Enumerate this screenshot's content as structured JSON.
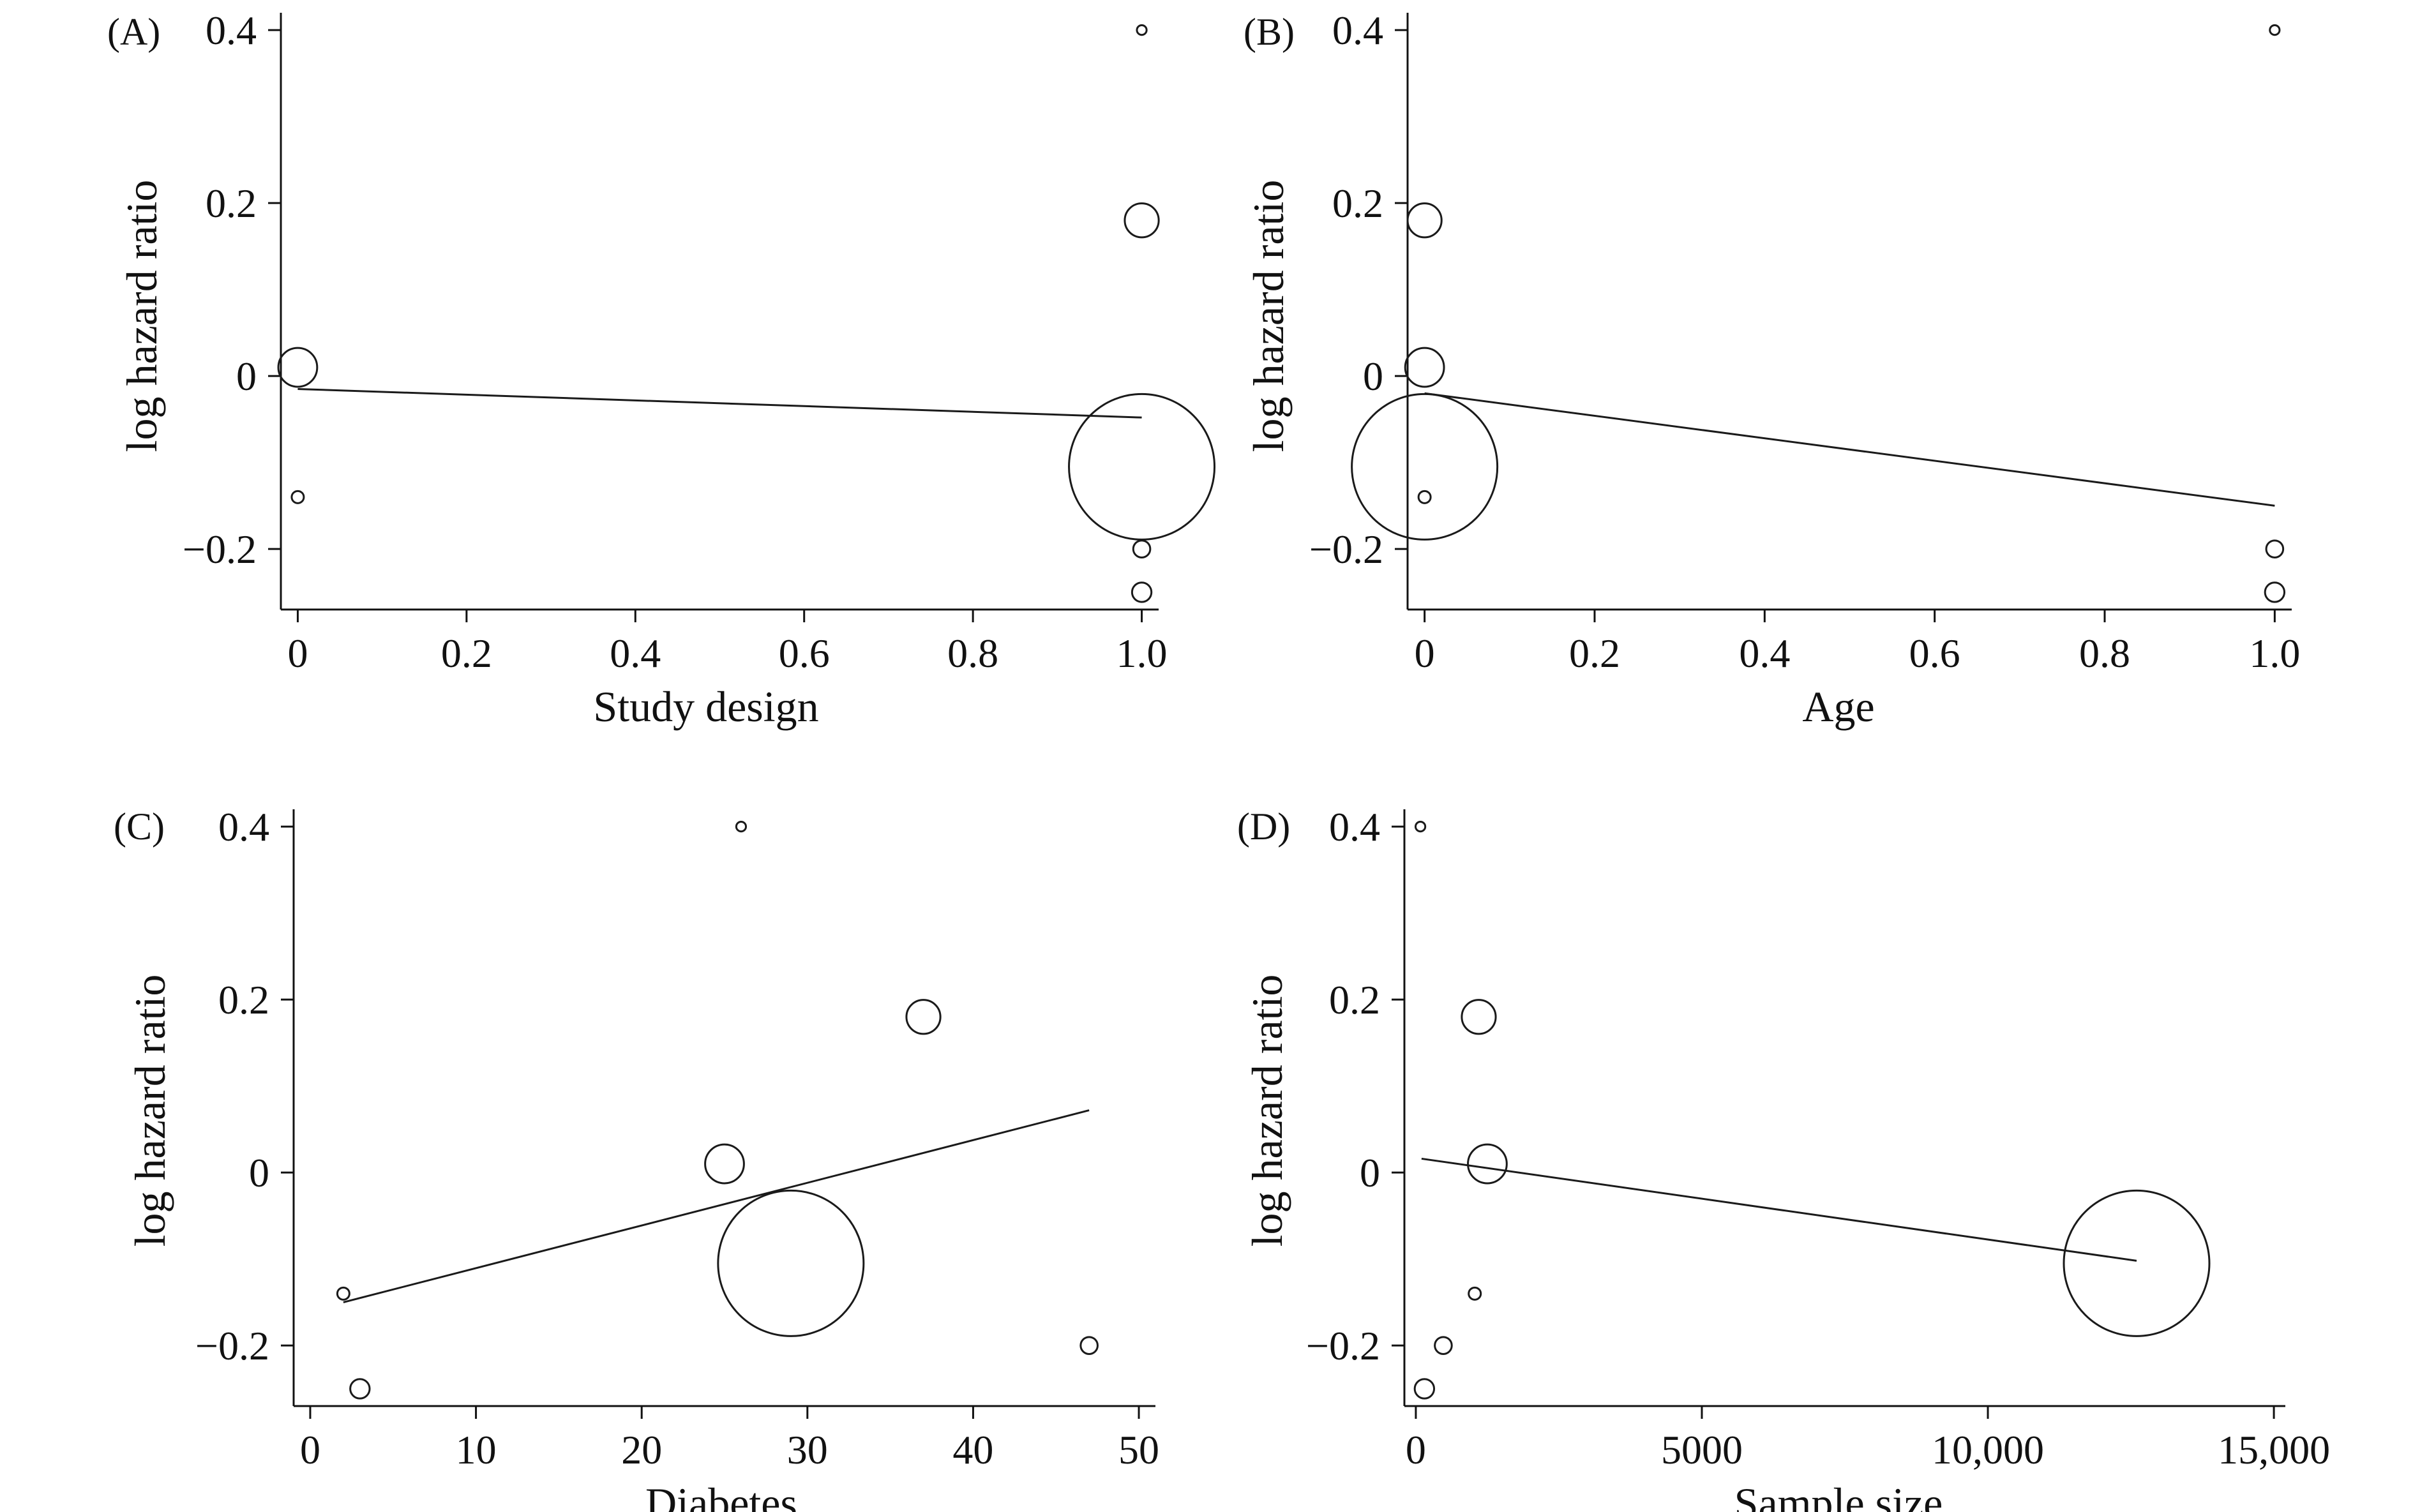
{
  "chart_data": [
    {
      "panel": "(A)",
      "type": "scatter",
      "xlabel": "Study design",
      "ylabel": "log hazard ratio",
      "xlim": [
        -0.02,
        1.02
      ],
      "ylim": [
        -0.27,
        0.42
      ],
      "xticks": [
        0,
        0.2,
        0.4,
        0.6,
        0.8,
        1.0
      ],
      "xtick_labels": [
        "0",
        "0.2",
        "0.4",
        "0.6",
        "0.8",
        "1.0"
      ],
      "yticks": [
        -0.2,
        0,
        0.2,
        0.4
      ],
      "ytick_labels": [
        "−0.2",
        "0",
        "0.2",
        "0.4"
      ],
      "grid": false,
      "points": [
        {
          "x": 0,
          "y": 0.01,
          "size": 16
        },
        {
          "x": 0,
          "y": -0.14,
          "size": 5
        },
        {
          "x": 1,
          "y": 0.4,
          "size": 4
        },
        {
          "x": 1,
          "y": 0.18,
          "size": 14
        },
        {
          "x": 1,
          "y": -0.105,
          "size": 60
        },
        {
          "x": 1,
          "y": -0.2,
          "size": 7
        },
        {
          "x": 1,
          "y": -0.25,
          "size": 8
        }
      ],
      "fit_line": {
        "x": [
          0,
          1
        ],
        "y": [
          -0.015,
          -0.048
        ]
      }
    },
    {
      "panel": "(B)",
      "type": "scatter",
      "xlabel": "Age",
      "ylabel": "log hazard ratio",
      "xlim": [
        -0.02,
        1.02
      ],
      "ylim": [
        -0.27,
        0.42
      ],
      "xticks": [
        0,
        0.2,
        0.4,
        0.6,
        0.8,
        1.0
      ],
      "xtick_labels": [
        "0",
        "0.2",
        "0.4",
        "0.6",
        "0.8",
        "1.0"
      ],
      "yticks": [
        -0.2,
        0,
        0.2,
        0.4
      ],
      "ytick_labels": [
        "−0.2",
        "0",
        "0.2",
        "0.4"
      ],
      "grid": false,
      "points": [
        {
          "x": 0,
          "y": 0.18,
          "size": 14
        },
        {
          "x": 0,
          "y": 0.01,
          "size": 16
        },
        {
          "x": 0,
          "y": -0.105,
          "size": 60
        },
        {
          "x": 0,
          "y": -0.14,
          "size": 5
        },
        {
          "x": 1,
          "y": 0.4,
          "size": 4
        },
        {
          "x": 1,
          "y": -0.2,
          "size": 7
        },
        {
          "x": 1,
          "y": -0.25,
          "size": 8
        }
      ],
      "fit_line": {
        "x": [
          0,
          1
        ],
        "y": [
          -0.02,
          -0.15
        ]
      }
    },
    {
      "panel": "(C)",
      "type": "scatter",
      "xlabel": "Diabetes",
      "ylabel": "log hazard ratio",
      "xlim": [
        -1,
        51
      ],
      "ylim": [
        -0.27,
        0.42
      ],
      "xticks": [
        0,
        10,
        20,
        30,
        40,
        50
      ],
      "xtick_labels": [
        "0",
        "10",
        "20",
        "30",
        "40",
        "50"
      ],
      "yticks": [
        -0.2,
        0,
        0.2,
        0.4
      ],
      "ytick_labels": [
        "−0.2",
        "0",
        "0.2",
        "0.4"
      ],
      "grid": false,
      "points": [
        {
          "x": 26,
          "y": 0.4,
          "size": 4
        },
        {
          "x": 37,
          "y": 0.18,
          "size": 14
        },
        {
          "x": 25,
          "y": 0.01,
          "size": 16
        },
        {
          "x": 29,
          "y": -0.105,
          "size": 60
        },
        {
          "x": 2,
          "y": -0.14,
          "size": 5
        },
        {
          "x": 47,
          "y": -0.2,
          "size": 7
        },
        {
          "x": 3,
          "y": -0.25,
          "size": 8
        }
      ],
      "fit_line": {
        "x": [
          2,
          47
        ],
        "y": [
          -0.15,
          0.072
        ]
      }
    },
    {
      "panel": "(D)",
      "type": "scatter",
      "xlabel": "Sample size",
      "ylabel": "log hazard ratio",
      "xlim": [
        -200,
        15200
      ],
      "ylim": [
        -0.27,
        0.42
      ],
      "xticks": [
        0,
        5000,
        10000,
        15000
      ],
      "xtick_labels": [
        "0",
        "5000",
        "10,000",
        "15,000"
      ],
      "yticks": [
        -0.2,
        0,
        0.2,
        0.4
      ],
      "ytick_labels": [
        "−0.2",
        "0",
        "0.2",
        "0.4"
      ],
      "grid": false,
      "points": [
        {
          "x": 80,
          "y": 0.4,
          "size": 4
        },
        {
          "x": 1100,
          "y": 0.18,
          "size": 14
        },
        {
          "x": 1250,
          "y": 0.01,
          "size": 16
        },
        {
          "x": 12600,
          "y": -0.105,
          "size": 60
        },
        {
          "x": 1030,
          "y": -0.14,
          "size": 5
        },
        {
          "x": 480,
          "y": -0.2,
          "size": 7
        },
        {
          "x": 150,
          "y": -0.25,
          "size": 8
        }
      ],
      "fit_line": {
        "x": [
          100,
          12600
        ],
        "y": [
          0.016,
          -0.102
        ]
      }
    }
  ]
}
